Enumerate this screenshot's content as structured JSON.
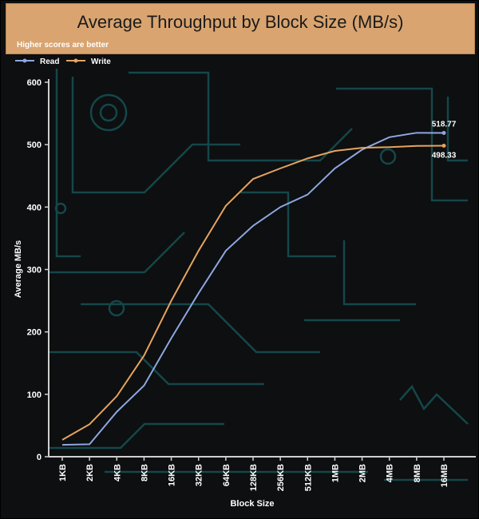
{
  "chart_data": {
    "type": "line",
    "title": "Average Throughput by Block Size (MB/s)",
    "subtitle": "Higher scores are better",
    "xlabel": "Block Size",
    "ylabel": "Average MB/s",
    "categories": [
      "1KB",
      "2KB",
      "4KB",
      "8KB",
      "16KB",
      "32KB",
      "64KB",
      "128KB",
      "256KB",
      "512KB",
      "1MB",
      "2MB",
      "4MB",
      "8MB",
      "16MB"
    ],
    "ylim": [
      0,
      600
    ],
    "yticks": [
      0,
      100,
      200,
      300,
      400,
      500,
      600
    ],
    "grid": false,
    "legend_position": "top-left",
    "series": [
      {
        "name": "Read",
        "color": "#8ea6e0",
        "values": [
          19,
          20,
          72,
          114,
          190,
          262,
          330,
          370,
          400,
          420,
          462,
          492,
          512,
          519,
          518.77
        ],
        "end_label": "518.77"
      },
      {
        "name": "Write",
        "color": "#e6a35f",
        "values": [
          27,
          52,
          97,
          162,
          250,
          330,
          402,
          445,
          462,
          478,
          490,
          495,
          496,
          498,
          498.33
        ],
        "end_label": "498.33"
      }
    ]
  },
  "colors": {
    "header_background": "#d9a46f",
    "plot_background": "#0d0f10",
    "circuit_traces": "#14474a"
  }
}
